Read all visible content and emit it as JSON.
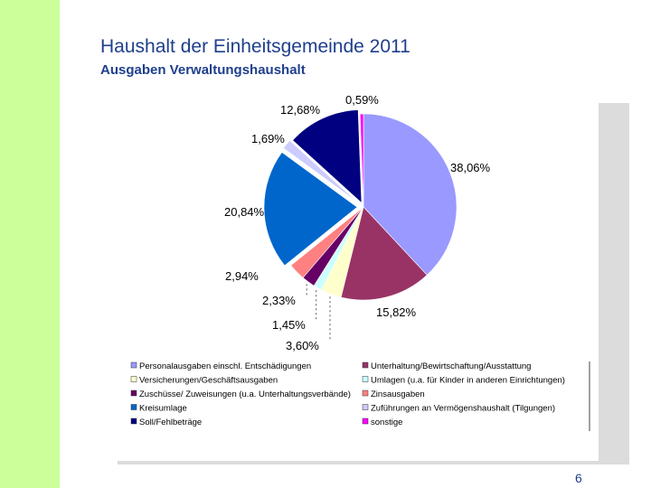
{
  "slide": {
    "title": "Haushalt der Einheitsgemeinde 2011",
    "subtitle": "Ausgaben Verwaltungshaushalt",
    "page_number": "6"
  },
  "chart_data": {
    "type": "pie",
    "title": "Ausgaben Verwaltungshaushalt",
    "start": "12 o'clock, clockwise",
    "slices": [
      {
        "name": "Personalausgaben einschl. Entschädigungen",
        "value": 38.06,
        "label": "38,06%",
        "color": "#9999ff"
      },
      {
        "name": "Unterhaltung/Bewirtschaftung/Ausstattung",
        "value": 15.82,
        "label": "15,82%",
        "color": "#993366"
      },
      {
        "name": "Versicherungen/Geschäftsausgaben",
        "value": 3.6,
        "label": "3,60%",
        "color": "#ffffcc"
      },
      {
        "name": "Umlagen (u.a. für Kinder in anderen Einrichtungen)",
        "value": 1.45,
        "label": "1,45%",
        "color": "#ccffff"
      },
      {
        "name": "Zuschüsse/ Zuweisungen (u.a. Unterhaltungsverbände)",
        "value": 2.33,
        "label": "2,33%",
        "color": "#660066"
      },
      {
        "name": "Zinsausgaben",
        "value": 2.94,
        "label": "2,94%",
        "color": "#ff8080"
      },
      {
        "name": "Kreisumlage",
        "value": 20.84,
        "label": "20,84%",
        "color": "#0066cc"
      },
      {
        "name": "Zuführungen an Vermögenshaushalt (Tilgungen)",
        "value": 1.69,
        "label": "1,69%",
        "color": "#ccccff"
      },
      {
        "name": "Soll/Fehlbeträge",
        "value": 12.68,
        "label": "12,68%",
        "color": "#000080"
      },
      {
        "name": "sonstige",
        "value": 0.59,
        "label": "0,59%",
        "color": "#ff00ff"
      }
    ],
    "legend": {
      "placement": "bottom",
      "columns": 2,
      "entries": [
        {
          "text": "Personalausgaben einschl. Entschädigungen",
          "color": "#9999ff"
        },
        {
          "text": "Unterhaltung/Bewirtschaftung/Ausstattung",
          "color": "#993366"
        },
        {
          "text": "Versicherungen/Geschäftsausgaben",
          "color": "#ffffcc"
        },
        {
          "text": "Umlagen (u.a. für Kinder in anderen Einrichtungen)",
          "color": "#ccffff"
        },
        {
          "text": "Zuschüsse/ Zuweisungen (u.a. Unterhaltungsverbände)",
          "color": "#660066"
        },
        {
          "text": "Zinsausgaben",
          "color": "#ff8080"
        },
        {
          "text": "Kreisumlage",
          "color": "#0066cc"
        },
        {
          "text": "Zuführungen an Vermögenshaushalt (Tilgungen)",
          "color": "#ccccff"
        },
        {
          "text": "Soll/Fehlbeträge",
          "color": "#000080"
        },
        {
          "text": "sonstige",
          "color": "#ff00ff"
        }
      ]
    }
  }
}
